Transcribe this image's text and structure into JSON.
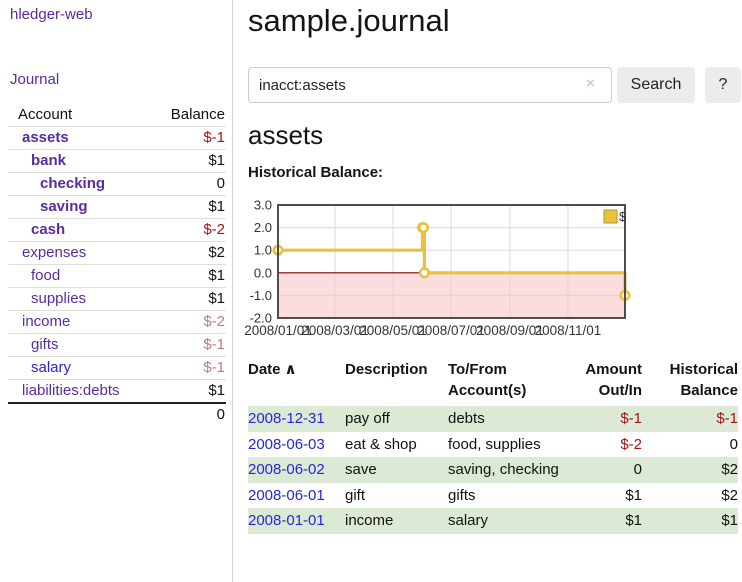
{
  "app": {
    "title": "hledger-web"
  },
  "sidebar": {
    "journal_link": "Journal",
    "table": {
      "col_account": "Account",
      "col_balance": "Balance",
      "rows": [
        {
          "label": "assets",
          "level": 0,
          "bold": true,
          "color": "purple",
          "value": "$-1",
          "value_style": "neg-strong"
        },
        {
          "label": "bank",
          "level": 1,
          "bold": true,
          "color": "purple",
          "value": "$1",
          "value_style": "normal"
        },
        {
          "label": "checking",
          "level": 2,
          "bold": true,
          "color": "purple",
          "value": "0",
          "value_style": "normal"
        },
        {
          "label": "saving",
          "level": 2,
          "bold": true,
          "color": "purple",
          "value": "$1",
          "value_style": "normal"
        },
        {
          "label": "cash",
          "level": 1,
          "bold": true,
          "color": "purple",
          "value": "$-2",
          "value_style": "neg-strong"
        },
        {
          "label": "expenses",
          "level": 0,
          "bold": false,
          "color": "purple",
          "value": "$2",
          "value_style": "normal"
        },
        {
          "label": "food",
          "level": 1,
          "bold": false,
          "color": "purple",
          "value": "$1",
          "value_style": "normal"
        },
        {
          "label": "supplies",
          "level": 1,
          "bold": false,
          "color": "purple",
          "value": "$1",
          "value_style": "normal"
        },
        {
          "label": "income",
          "level": 0,
          "bold": false,
          "color": "purple",
          "value": "$-2",
          "value_style": "neg-muted"
        },
        {
          "label": "gifts",
          "level": 1,
          "bold": false,
          "color": "purple",
          "value": "$-1",
          "value_style": "neg-muted"
        },
        {
          "label": "salary",
          "level": 1,
          "bold": false,
          "color": "blue",
          "value": "$-1",
          "value_style": "neg-muted"
        },
        {
          "label": "liabilities:debts",
          "level": 0,
          "bold": false,
          "color": "purple",
          "value": "$1",
          "value_style": "normal"
        }
      ],
      "total": "0"
    }
  },
  "main": {
    "title": "sample.journal",
    "search": {
      "value": "inacct:assets",
      "clear_icon": "×",
      "button": "Search",
      "help_button": "?"
    },
    "account_heading": "assets",
    "chart_heading": "Historical Balance:"
  },
  "chart_data": {
    "type": "line",
    "step": true,
    "title": "Historical Balance",
    "series": [
      {
        "name": "$",
        "color": "#e9c13d",
        "points": [
          [
            "2008-01-01",
            1
          ],
          [
            "2008-06-01",
            2
          ],
          [
            "2008-06-02",
            2
          ],
          [
            "2008-06-03",
            0
          ],
          [
            "2008-12-31",
            -1
          ]
        ]
      }
    ],
    "x_range": [
      "2008-01-01",
      "2008-12-31"
    ],
    "ylim": [
      -2,
      3
    ],
    "y_ticks": [
      "3.0",
      "2.0",
      "1.0",
      "0.0",
      "-1.0",
      "-2.0"
    ],
    "x_ticks": [
      "2008/01/01",
      "2008/03/01",
      "2008/05/01",
      "2008/07/01",
      "2008/09/01",
      "2008/11/01"
    ],
    "legend": "$",
    "legend_position": "top-right",
    "grid": true,
    "negative_region_color": "#fcdddd",
    "zero_line_color": "#8b0000",
    "border_color": "#4d4d4d",
    "grid_color": "#d6d6d6"
  },
  "register": {
    "headers": {
      "date": "Date",
      "sort_icon": "∧",
      "description": "Description",
      "accounts": "To/From Account(s)",
      "amount": "Amount Out/In",
      "balance": "Historical Balance"
    },
    "rows": [
      {
        "date": "2008-12-31",
        "description": "pay off",
        "accounts": "debts",
        "amount": "$-1",
        "amount_neg": true,
        "balance": "$-1",
        "balance_neg": true
      },
      {
        "date": "2008-06-03",
        "description": "eat & shop",
        "accounts": "food, supplies",
        "amount": "$-2",
        "amount_neg": true,
        "balance": "0",
        "balance_neg": false
      },
      {
        "date": "2008-06-02",
        "description": "save",
        "accounts": "saving, checking",
        "amount": "0",
        "amount_neg": false,
        "balance": "$2",
        "balance_neg": false
      },
      {
        "date": "2008-06-01",
        "description": "gift",
        "accounts": "gifts",
        "amount": "$1",
        "amount_neg": false,
        "balance": "$2",
        "balance_neg": false
      },
      {
        "date": "2008-01-01",
        "description": "income",
        "accounts": "salary",
        "amount": "$1",
        "amount_neg": false,
        "balance": "$1",
        "balance_neg": false
      }
    ]
  },
  "colors": {
    "link_purple": "#5a2ca0",
    "link_blue": "#2626d8",
    "negative_strong": "#a01616",
    "negative_muted": "#b97f7f",
    "row_green": "#dcead5",
    "divider": "#d8d8d8",
    "button_bg": "#ececec"
  }
}
